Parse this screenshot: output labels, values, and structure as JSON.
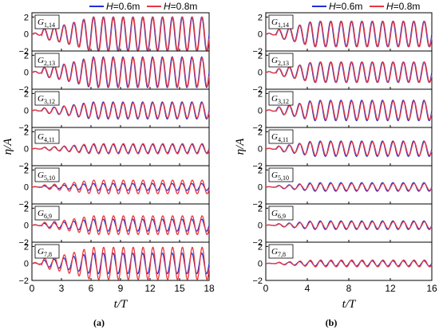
{
  "figure": {
    "caption_a": "(a)",
    "caption_b": "(b)"
  },
  "chart_data": [
    {
      "type": "line",
      "panel_label": "(a)",
      "xlabel": "t/T",
      "ylabel": "η/A",
      "xlim": [
        0,
        18
      ],
      "xticks": [
        0,
        3,
        6,
        9,
        12,
        15,
        18
      ],
      "ylim": [
        -2,
        2.5
      ],
      "yticks": [
        -2,
        0,
        2
      ],
      "legend": {
        "placement": "top-right",
        "entries": [
          "H=0.6m",
          "H=0.8m"
        ]
      },
      "colors": {
        "H=0.6m": "#1f2fd6",
        "H=0.8m": "#e8383d"
      },
      "subplots": [
        {
          "gauge": "G1,14",
          "gauge_main": "G",
          "gauge_sub": "1,14",
          "series": [
            {
              "name": "H=0.6m",
              "amplitude": 2.0
            },
            {
              "name": "H=0.8m",
              "amplitude": 2.0
            }
          ]
        },
        {
          "gauge": "G2,13",
          "gauge_main": "G",
          "gauge_sub": "2,13",
          "series": [
            {
              "name": "H=0.6m",
              "amplitude": 1.8
            },
            {
              "name": "H=0.8m",
              "amplitude": 1.7
            }
          ]
        },
        {
          "gauge": "G3,12",
          "gauge_main": "G",
          "gauge_sub": "3,12",
          "series": [
            {
              "name": "H=0.6m",
              "amplitude": 1.0
            },
            {
              "name": "H=0.8m",
              "amplitude": 0.9
            }
          ]
        },
        {
          "gauge": "G4,11",
          "gauge_main": "G",
          "gauge_sub": "4,11",
          "series": [
            {
              "name": "H=0.6m",
              "amplitude": 0.5
            },
            {
              "name": "H=0.8m",
              "amplitude": 0.6
            }
          ]
        },
        {
          "gauge": "G5,10",
          "gauge_main": "G",
          "gauge_sub": "5,10",
          "series": [
            {
              "name": "H=0.6m",
              "amplitude": 0.4
            },
            {
              "name": "H=0.8m",
              "amplitude": 0.8
            }
          ]
        },
        {
          "gauge": "G6,9",
          "gauge_main": "G",
          "gauge_sub": "6,9",
          "series": [
            {
              "name": "H=0.6m",
              "amplitude": 0.7
            },
            {
              "name": "H=0.8m",
              "amplitude": 1.1
            }
          ]
        },
        {
          "gauge": "G7,8",
          "gauge_main": "G",
          "gauge_sub": "7,8",
          "series": [
            {
              "name": "H=0.6m",
              "amplitude": 1.2
            },
            {
              "name": "H=0.8m",
              "amplitude": 1.9
            }
          ]
        }
      ]
    },
    {
      "type": "line",
      "panel_label": "(b)",
      "xlabel": "t/T",
      "ylabel": "η/A",
      "xlim": [
        0,
        16
      ],
      "xticks": [
        0,
        4,
        8,
        12,
        16
      ],
      "ylim": [
        -2,
        2.5
      ],
      "yticks": [
        -2,
        0,
        2
      ],
      "legend": {
        "placement": "top-right",
        "entries": [
          "H=0.6m",
          "H=0.8m"
        ]
      },
      "colors": {
        "H=0.6m": "#1f2fd6",
        "H=0.8m": "#e8383d"
      },
      "subplots": [
        {
          "gauge": "G1,14",
          "gauge_main": "G",
          "gauge_sub": "1,14",
          "series": [
            {
              "name": "H=0.6m",
              "amplitude": 1.5
            },
            {
              "name": "H=0.8m",
              "amplitude": 1.5
            }
          ]
        },
        {
          "gauge": "G2,13",
          "gauge_main": "G",
          "gauge_sub": "2,13",
          "series": [
            {
              "name": "H=0.6m",
              "amplitude": 1.2
            },
            {
              "name": "H=0.8m",
              "amplitude": 1.2
            }
          ]
        },
        {
          "gauge": "G3,12",
          "gauge_main": "G",
          "gauge_sub": "3,12",
          "series": [
            {
              "name": "H=0.6m",
              "amplitude": 1.2
            },
            {
              "name": "H=0.8m",
              "amplitude": 1.1
            }
          ]
        },
        {
          "gauge": "G4,11",
          "gauge_main": "G",
          "gauge_sub": "4,11",
          "series": [
            {
              "name": "H=0.6m",
              "amplitude": 0.9
            },
            {
              "name": "H=0.8m",
              "amplitude": 0.8
            }
          ]
        },
        {
          "gauge": "G5,10",
          "gauge_main": "G",
          "gauge_sub": "5,10",
          "series": [
            {
              "name": "H=0.6m",
              "amplitude": 0.5
            },
            {
              "name": "H=0.8m",
              "amplitude": 0.4
            }
          ]
        },
        {
          "gauge": "G6,9",
          "gauge_main": "G",
          "gauge_sub": "6,9",
          "series": [
            {
              "name": "H=0.6m",
              "amplitude": 0.5
            },
            {
              "name": "H=0.8m",
              "amplitude": 0.4
            }
          ]
        },
        {
          "gauge": "G7,8",
          "gauge_main": "G",
          "gauge_sub": "7,8",
          "series": [
            {
              "name": "H=0.6m",
              "amplitude": 0.3
            },
            {
              "name": "H=0.8m",
              "amplitude": 0.4
            }
          ]
        }
      ]
    }
  ]
}
